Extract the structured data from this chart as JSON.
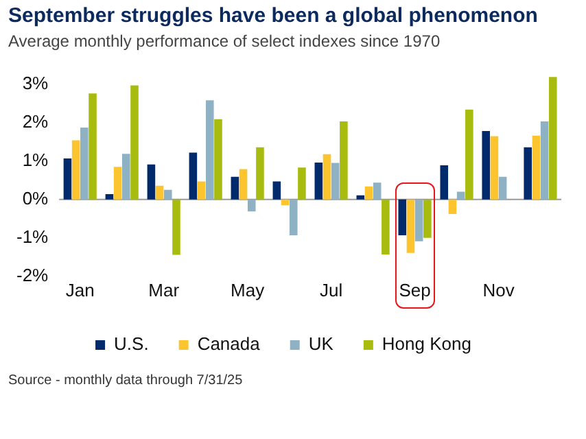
{
  "chart_data": {
    "type": "bar",
    "title": "September struggles have been a global phenomenon",
    "subtitle": "Average monthly performance of select indexes since 1970",
    "categories": [
      "Jan",
      null,
      "Mar",
      null,
      "May",
      null,
      "Jul",
      null,
      "Sep",
      null,
      "Nov",
      null
    ],
    "series": [
      {
        "name": "U.S.",
        "color": "#002a6c",
        "values": [
          1.07,
          0.14,
          0.91,
          1.22,
          0.59,
          0.47,
          0.96,
          0.11,
          -0.93,
          0.89,
          1.78,
          1.36
        ]
      },
      {
        "name": "Canada",
        "color": "#fcc530",
        "values": [
          1.54,
          0.85,
          0.36,
          0.47,
          0.79,
          -0.15,
          1.18,
          0.34,
          -1.39,
          -0.38,
          1.65,
          1.66
        ]
      },
      {
        "name": "UK",
        "color": "#8fb1c4",
        "values": [
          1.87,
          1.19,
          0.25,
          2.58,
          -0.31,
          -0.93,
          0.95,
          0.44,
          -1.09,
          0.2,
          0.59,
          2.03
        ]
      },
      {
        "name": "Hong Kong",
        "color": "#a8bb0f",
        "values": [
          2.76,
          2.97,
          -1.44,
          2.09,
          1.36,
          0.83,
          2.03,
          -1.43,
          -1.0,
          2.34,
          null,
          3.19
        ]
      }
    ],
    "ylim": [
      -2,
      3.2
    ],
    "yticks": [
      {
        "value": -2,
        "label": "-2%"
      },
      {
        "value": -1,
        "label": "-1%"
      },
      {
        "value": 0,
        "label": "0%"
      },
      {
        "value": 1,
        "label": "1%"
      },
      {
        "value": 2,
        "label": "2%"
      },
      {
        "value": 3,
        "label": "3%"
      }
    ],
    "legend": "bottom",
    "annotations": [
      "Source - monthly data through 7/31/25"
    ]
  }
}
